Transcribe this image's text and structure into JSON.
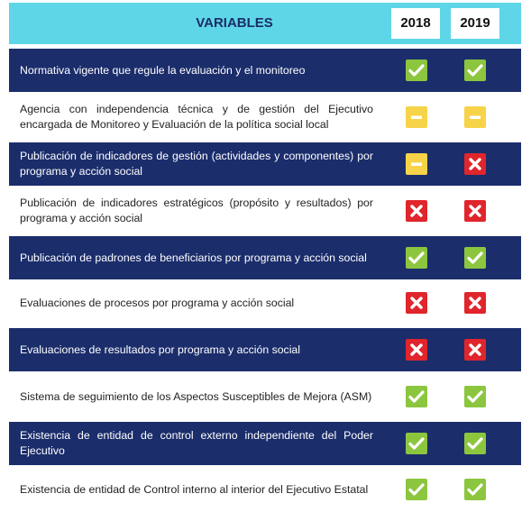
{
  "header": {
    "title": "VARIABLES",
    "years": [
      "2018",
      "2019"
    ]
  },
  "rows": [
    "Normativa vigente que regule la evaluación y el monitoreo",
    "Agencia con independencia técnica y de gestión del Ejecutivo encargada de Monitoreo y Evaluación de la política social local",
    "Publicación de indicadores de gestión (actividades y componentes) por programa y acción social",
    "Publicación de indicadores estratégicos (propósito y resultados) por programa y acción social",
    "Publicación de padrones de beneficiarios por programa y acción social",
    "Evaluaciones de procesos por programa y acción social",
    "Evaluaciones de resultados por programa y acción social",
    "Sistema de seguimiento de los Aspectos Susceptibles de Mejora (ASM)",
    "Existencia de entidad de control externo independiente del Poder Ejecutivo",
    "Existencia de entidad de Control interno al interior del Ejecutivo Estatal"
  ]
}
